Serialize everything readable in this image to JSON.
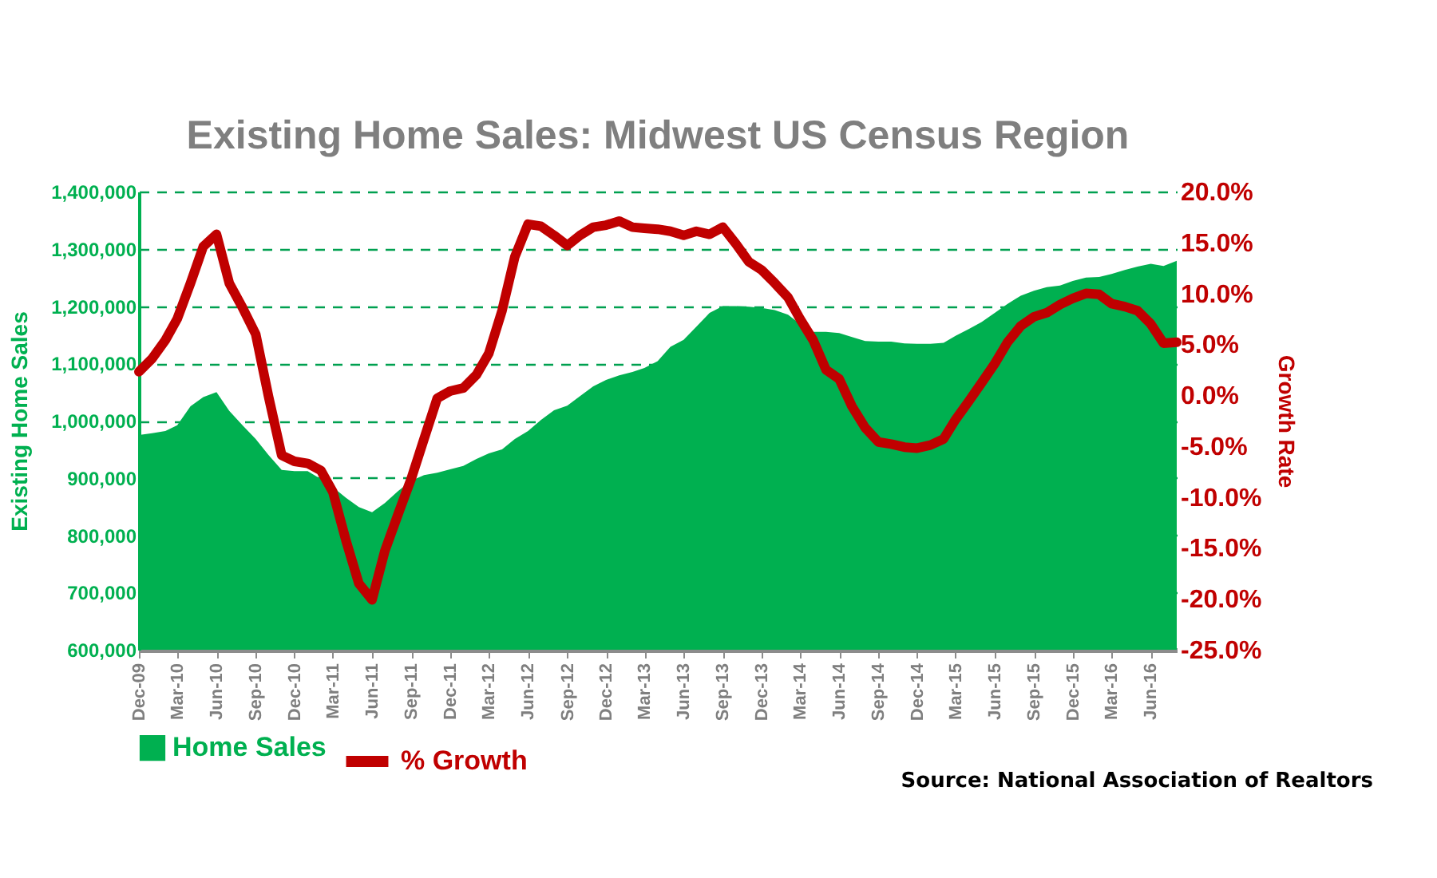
{
  "chart_data": {
    "type": "area",
    "title": "Existing Home Sales:  Midwest US Census Region",
    "ylabel": "Existing Home Sales",
    "y2label": "Growth Rate",
    "x": [
      "2009-12",
      "2010-01",
      "2010-02",
      "2010-03",
      "2010-04",
      "2010-05",
      "2010-06",
      "2010-07",
      "2010-08",
      "2010-09",
      "2010-10",
      "2010-11",
      "2010-12",
      "2011-01",
      "2011-02",
      "2011-03",
      "2011-04",
      "2011-05",
      "2011-06",
      "2011-07",
      "2011-08",
      "2011-09",
      "2011-10",
      "2011-11",
      "2011-12",
      "2012-01",
      "2012-02",
      "2012-03",
      "2012-04",
      "2012-05",
      "2012-06",
      "2012-07",
      "2012-08",
      "2012-09",
      "2012-10",
      "2012-11",
      "2012-12",
      "2013-01",
      "2013-02",
      "2013-03",
      "2013-04",
      "2013-05",
      "2013-06",
      "2013-07",
      "2013-08",
      "2013-09",
      "2013-10",
      "2013-11",
      "2013-12",
      "2014-01",
      "2014-02",
      "2014-03",
      "2014-04",
      "2014-05",
      "2014-06",
      "2014-07",
      "2014-08",
      "2014-09",
      "2014-10",
      "2014-11",
      "2014-12",
      "2015-01",
      "2015-02",
      "2015-03",
      "2015-04",
      "2015-05",
      "2015-06",
      "2015-07",
      "2015-08",
      "2015-09",
      "2015-10",
      "2015-11",
      "2015-12",
      "2016-01",
      "2016-02",
      "2016-03",
      "2016-04",
      "2016-05",
      "2016-06",
      "2016-07",
      "2016-08"
    ],
    "series": [
      {
        "name": "Home Sales",
        "color": "#00b050",
        "values": [
          975000,
          978000,
          982000,
          992000,
          1025000,
          1041000,
          1050000,
          1017000,
          992000,
          968000,
          940000,
          914000,
          912000,
          912000,
          898000,
          884000,
          865000,
          849000,
          840000,
          856000,
          877000,
          895000,
          905000,
          909000,
          915000,
          921000,
          933000,
          943000,
          950000,
          968000,
          982000,
          1001000,
          1018000,
          1026000,
          1043000,
          1060000,
          1071000,
          1079000,
          1085000,
          1092000,
          1104000,
          1129000,
          1141000,
          1164000,
          1188000,
          1200000,
          1200000,
          1199000,
          1197000,
          1193000,
          1185000,
          1169000,
          1155000,
          1155000,
          1153000,
          1146000,
          1139000,
          1138000,
          1138000,
          1135000,
          1134000,
          1134000,
          1136000,
          1148000,
          1160000,
          1172000,
          1188000,
          1204000,
          1218000,
          1227000,
          1233000,
          1236000,
          1244000,
          1250000,
          1251000,
          1256000,
          1263000,
          1269000,
          1274000,
          1270000,
          1279000
        ]
      },
      {
        "name": "% Growth",
        "type": "line",
        "axis": "y2",
        "color": "#c00000",
        "values": [
          2.3,
          3.6,
          5.4,
          7.5,
          11.0,
          14.6,
          15.8,
          11.0,
          8.6,
          6.0,
          -0.1,
          -5.9,
          -6.5,
          -6.7,
          -7.4,
          -9.5,
          -14.3,
          -18.5,
          -20.1,
          -15.3,
          -11.7,
          -8.2,
          -4.3,
          -0.3,
          0.4,
          0.7,
          2.0,
          4.1,
          8.3,
          13.6,
          16.8,
          16.6,
          15.7,
          14.7,
          15.7,
          16.5,
          16.7,
          17.1,
          16.5,
          16.4,
          16.3,
          16.1,
          15.7,
          16.1,
          15.8,
          16.5,
          14.9,
          13.1,
          12.3,
          11.0,
          9.6,
          7.5,
          5.4,
          2.5,
          1.6,
          -1.1,
          -3.2,
          -4.6,
          -4.8,
          -5.1,
          -5.2,
          -4.9,
          -4.3,
          -2.4,
          -0.6,
          1.2,
          3.1,
          5.2,
          6.8,
          7.7,
          8.1,
          8.9,
          9.5,
          10.0,
          9.9,
          9.0,
          8.7,
          8.3,
          7.0,
          5.1,
          5.2
        ]
      }
    ],
    "xlim": [
      "2009-12",
      "2016-08"
    ],
    "xticks": [
      {
        "value": "2009-12",
        "label": "Dec-09"
      },
      {
        "value": "2010-03",
        "label": "Mar-10"
      },
      {
        "value": "2010-06",
        "label": "Jun-10"
      },
      {
        "value": "2010-09",
        "label": "Sep-10"
      },
      {
        "value": "2010-12",
        "label": "Dec-10"
      },
      {
        "value": "2011-03",
        "label": "Mar-11"
      },
      {
        "value": "2011-06",
        "label": "Jun-11"
      },
      {
        "value": "2011-09",
        "label": "Sep-11"
      },
      {
        "value": "2011-12",
        "label": "Dec-11"
      },
      {
        "value": "2012-03",
        "label": "Mar-12"
      },
      {
        "value": "2012-06",
        "label": "Jun-12"
      },
      {
        "value": "2012-09",
        "label": "Sep-12"
      },
      {
        "value": "2012-12",
        "label": "Dec-12"
      },
      {
        "value": "2013-03",
        "label": "Mar-13"
      },
      {
        "value": "2013-06",
        "label": "Jun-13"
      },
      {
        "value": "2013-09",
        "label": "Sep-13"
      },
      {
        "value": "2013-12",
        "label": "Dec-13"
      },
      {
        "value": "2014-03",
        "label": "Mar-14"
      },
      {
        "value": "2014-06",
        "label": "Jun-14"
      },
      {
        "value": "2014-09",
        "label": "Sep-14"
      },
      {
        "value": "2014-12",
        "label": "Dec-14"
      },
      {
        "value": "2015-03",
        "label": "Mar-15"
      },
      {
        "value": "2015-06",
        "label": "Jun-15"
      },
      {
        "value": "2015-09",
        "label": "Sep-15"
      },
      {
        "value": "2015-12",
        "label": "Dec-15"
      },
      {
        "value": "2016-03",
        "label": "Mar-16"
      },
      {
        "value": "2016-06",
        "label": "Jun-16"
      }
    ],
    "ylim": [
      600000,
      1400000
    ],
    "yticks": [
      {
        "value": 600000,
        "label": "600,000"
      },
      {
        "value": 700000,
        "label": "700,000"
      },
      {
        "value": 800000,
        "label": "800,000"
      },
      {
        "value": 900000,
        "label": "900,000"
      },
      {
        "value": 1000000,
        "label": "1,000,000"
      },
      {
        "value": 1100000,
        "label": "1,100,000"
      },
      {
        "value": 1200000,
        "label": "1,200,000"
      },
      {
        "value": 1300000,
        "label": "1,300,000"
      },
      {
        "value": 1400000,
        "label": "1,400,000"
      }
    ],
    "y2lim": [
      -25,
      20
    ],
    "y2ticks": [
      {
        "value": -25,
        "label": "-25.0%"
      },
      {
        "value": -20,
        "label": "-20.0%"
      },
      {
        "value": -15,
        "label": "-15.0%"
      },
      {
        "value": -10,
        "label": "-10.0%"
      },
      {
        "value": -5,
        "label": "-5.0%"
      },
      {
        "value": 0,
        "label": "0.0%"
      },
      {
        "value": 5,
        "label": "5.0%"
      },
      {
        "value": 10,
        "label": "10.0%"
      },
      {
        "value": 15,
        "label": "15.0%"
      },
      {
        "value": 20,
        "label": "20.0%"
      }
    ],
    "grid": "y",
    "legend": "bottom",
    "annotations": [
      "Source: National Association of Realtors"
    ]
  }
}
